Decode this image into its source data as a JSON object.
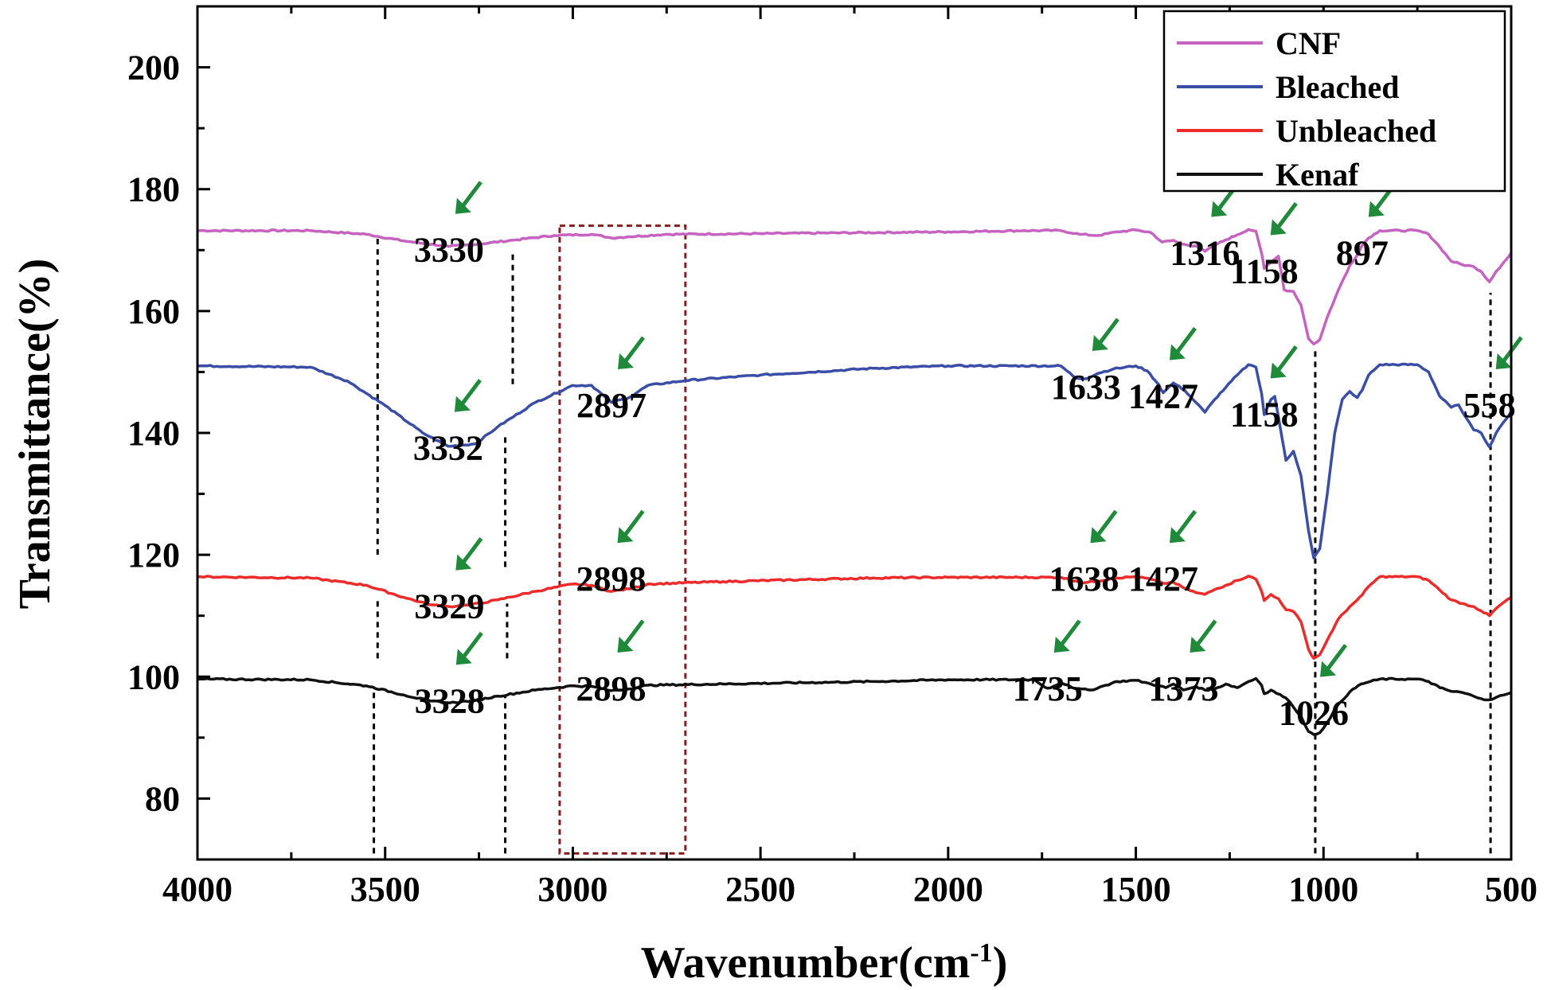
{
  "chart_data": {
    "type": "line",
    "xlabel": "Wavenumber(cm",
    "xlabel_sup": "-1",
    "xlabel_close": ")",
    "ylabel": "Transmittance(%)",
    "xlim": [
      4000,
      500
    ],
    "ylim": [
      70,
      210
    ],
    "x_reversed": true,
    "xticks": [
      4000,
      3500,
      3000,
      2500,
      2000,
      1500,
      1000,
      500
    ],
    "yticks": [
      80,
      100,
      120,
      140,
      160,
      180,
      200
    ],
    "grid": false,
    "legend_position": "top-right",
    "series": [
      {
        "name": "CNF",
        "color": "#c663c1",
        "points": [
          [
            4000,
            173.2
          ],
          [
            3700,
            173.2
          ],
          [
            3550,
            172.6
          ],
          [
            3450,
            171.5
          ],
          [
            3330,
            170.6
          ],
          [
            3250,
            171.0
          ],
          [
            3150,
            171.7
          ],
          [
            3050,
            172.4
          ],
          [
            2950,
            172.6
          ],
          [
            2897,
            172.0
          ],
          [
            2850,
            172.2
          ],
          [
            2750,
            172.6
          ],
          [
            2500,
            172.7
          ],
          [
            2000,
            173.0
          ],
          [
            1800,
            173.2
          ],
          [
            1700,
            173.2
          ],
          [
            1650,
            172.6
          ],
          [
            1600,
            172.4
          ],
          [
            1550,
            173.0
          ],
          [
            1500,
            173.3
          ],
          [
            1460,
            172.9
          ],
          [
            1430,
            171.3
          ],
          [
            1400,
            171.6
          ],
          [
            1380,
            171.0
          ],
          [
            1340,
            170.7
          ],
          [
            1316,
            169.8
          ],
          [
            1290,
            170.8
          ],
          [
            1260,
            171.7
          ],
          [
            1230,
            172.5
          ],
          [
            1200,
            173.4
          ],
          [
            1180,
            173.1
          ],
          [
            1165,
            169.5
          ],
          [
            1158,
            167.0
          ],
          [
            1140,
            168.0
          ],
          [
            1120,
            169.0
          ],
          [
            1105,
            163.5
          ],
          [
            1080,
            163.2
          ],
          [
            1060,
            161.0
          ],
          [
            1040,
            155.5
          ],
          [
            1026,
            154.6
          ],
          [
            1010,
            155.3
          ],
          [
            990,
            159.0
          ],
          [
            960,
            163.5
          ],
          [
            930,
            167.5
          ],
          [
            910,
            169.2
          ],
          [
            897,
            170.8
          ],
          [
            880,
            172.0
          ],
          [
            850,
            173.2
          ],
          [
            750,
            173.2
          ],
          [
            720,
            172.6
          ],
          [
            690,
            170.5
          ],
          [
            660,
            168.2
          ],
          [
            630,
            167.6
          ],
          [
            600,
            167.3
          ],
          [
            580,
            166.5
          ],
          [
            558,
            164.8
          ],
          [
            540,
            166.5
          ],
          [
            520,
            168.0
          ],
          [
            500,
            169.5
          ]
        ]
      },
      {
        "name": "Bleached",
        "color": "#3a4ea8",
        "points": [
          [
            4000,
            151.0
          ],
          [
            3700,
            150.8
          ],
          [
            3600,
            148.5
          ],
          [
            3500,
            144.5
          ],
          [
            3400,
            140.0
          ],
          [
            3332,
            137.8
          ],
          [
            3260,
            138.2
          ],
          [
            3200,
            141.0
          ],
          [
            3100,
            145.0
          ],
          [
            3000,
            147.8
          ],
          [
            2950,
            147.8
          ],
          [
            2920,
            146.2
          ],
          [
            2897,
            145.0
          ],
          [
            2850,
            145.8
          ],
          [
            2800,
            147.8
          ],
          [
            2700,
            148.6
          ],
          [
            2500,
            149.5
          ],
          [
            2200,
            150.6
          ],
          [
            2000,
            151.0
          ],
          [
            1700,
            151.0
          ],
          [
            1660,
            149.0
          ],
          [
            1633,
            148.9
          ],
          [
            1600,
            149.8
          ],
          [
            1560,
            150.5
          ],
          [
            1500,
            151.0
          ],
          [
            1470,
            150.2
          ],
          [
            1440,
            148.0
          ],
          [
            1427,
            146.6
          ],
          [
            1400,
            148.2
          ],
          [
            1370,
            147.0
          ],
          [
            1340,
            145.0
          ],
          [
            1316,
            143.4
          ],
          [
            1290,
            145.5
          ],
          [
            1260,
            147.5
          ],
          [
            1230,
            149.5
          ],
          [
            1200,
            151.2
          ],
          [
            1180,
            150.8
          ],
          [
            1165,
            146.5
          ],
          [
            1158,
            143.0
          ],
          [
            1140,
            145.5
          ],
          [
            1130,
            146.0
          ],
          [
            1110,
            139.0
          ],
          [
            1100,
            135.5
          ],
          [
            1080,
            137.0
          ],
          [
            1060,
            133.0
          ],
          [
            1040,
            124.0
          ],
          [
            1026,
            119.5
          ],
          [
            1010,
            121.0
          ],
          [
            990,
            130.0
          ],
          [
            970,
            140.0
          ],
          [
            950,
            145.5
          ],
          [
            930,
            146.8
          ],
          [
            910,
            145.8
          ],
          [
            897,
            147.0
          ],
          [
            880,
            149.5
          ],
          [
            850,
            151.2
          ],
          [
            750,
            151.2
          ],
          [
            720,
            150.0
          ],
          [
            690,
            146.0
          ],
          [
            660,
            144.2
          ],
          [
            640,
            144.6
          ],
          [
            620,
            142.5
          ],
          [
            600,
            140.5
          ],
          [
            580,
            140.0
          ],
          [
            558,
            137.7
          ],
          [
            540,
            140.0
          ],
          [
            520,
            141.8
          ],
          [
            500,
            143.5
          ]
        ]
      },
      {
        "name": "Unbleached",
        "color": "#ee2b2b",
        "points": [
          [
            4000,
            116.4
          ],
          [
            3700,
            116.2
          ],
          [
            3550,
            115.0
          ],
          [
            3450,
            113.0
          ],
          [
            3380,
            111.8
          ],
          [
            3329,
            111.5
          ],
          [
            3270,
            111.8
          ],
          [
            3200,
            112.6
          ],
          [
            3100,
            114.0
          ],
          [
            3000,
            115.2
          ],
          [
            2950,
            115.0
          ],
          [
            2898,
            114.0
          ],
          [
            2850,
            114.4
          ],
          [
            2800,
            115.2
          ],
          [
            2600,
            115.6
          ],
          [
            2200,
            116.2
          ],
          [
            2000,
            116.3
          ],
          [
            1700,
            116.3
          ],
          [
            1660,
            115.7
          ],
          [
            1638,
            115.4
          ],
          [
            1600,
            115.7
          ],
          [
            1560,
            116.2
          ],
          [
            1500,
            116.4
          ],
          [
            1460,
            116.0
          ],
          [
            1427,
            115.3
          ],
          [
            1400,
            115.5
          ],
          [
            1370,
            114.5
          ],
          [
            1340,
            113.8
          ],
          [
            1316,
            113.5
          ],
          [
            1290,
            114.3
          ],
          [
            1260,
            115.0
          ],
          [
            1230,
            115.8
          ],
          [
            1200,
            116.5
          ],
          [
            1180,
            116.0
          ],
          [
            1165,
            114.0
          ],
          [
            1158,
            112.5
          ],
          [
            1140,
            113.5
          ],
          [
            1120,
            112.8
          ],
          [
            1100,
            111.0
          ],
          [
            1080,
            110.7
          ],
          [
            1060,
            109.0
          ],
          [
            1040,
            104.5
          ],
          [
            1026,
            103.0
          ],
          [
            1010,
            103.6
          ],
          [
            990,
            106.0
          ],
          [
            960,
            109.5
          ],
          [
            930,
            111.5
          ],
          [
            910,
            112.6
          ],
          [
            897,
            113.4
          ],
          [
            880,
            114.8
          ],
          [
            850,
            116.4
          ],
          [
            750,
            116.4
          ],
          [
            720,
            115.8
          ],
          [
            690,
            114.2
          ],
          [
            660,
            112.6
          ],
          [
            630,
            112.0
          ],
          [
            600,
            111.5
          ],
          [
            580,
            110.8
          ],
          [
            558,
            110.0
          ],
          [
            540,
            111.2
          ],
          [
            520,
            112.2
          ],
          [
            500,
            113.0
          ]
        ]
      },
      {
        "name": "Kenaf",
        "color": "#111111",
        "points": [
          [
            4000,
            99.6
          ],
          [
            3700,
            99.5
          ],
          [
            3550,
            98.5
          ],
          [
            3450,
            97.0
          ],
          [
            3380,
            96.0
          ],
          [
            3328,
            95.7
          ],
          [
            3260,
            96.1
          ],
          [
            3200,
            96.8
          ],
          [
            3100,
            97.8
          ],
          [
            3000,
            98.5
          ],
          [
            2950,
            98.4
          ],
          [
            2898,
            97.7
          ],
          [
            2850,
            98.0
          ],
          [
            2800,
            98.6
          ],
          [
            2600,
            98.8
          ],
          [
            2200,
            99.2
          ],
          [
            2000,
            99.5
          ],
          [
            1770,
            99.5
          ],
          [
            1750,
            98.6
          ],
          [
            1735,
            98.1
          ],
          [
            1720,
            98.4
          ],
          [
            1700,
            99.0
          ],
          [
            1680,
            98.6
          ],
          [
            1660,
            98.0
          ],
          [
            1620,
            97.8
          ],
          [
            1580,
            98.6
          ],
          [
            1550,
            99.2
          ],
          [
            1500,
            99.4
          ],
          [
            1460,
            98.8
          ],
          [
            1420,
            98.2
          ],
          [
            1400,
            98.8
          ],
          [
            1373,
            97.8
          ],
          [
            1340,
            98.4
          ],
          [
            1316,
            97.8
          ],
          [
            1290,
            98.0
          ],
          [
            1260,
            98.8
          ],
          [
            1230,
            98.2
          ],
          [
            1200,
            99.2
          ],
          [
            1180,
            99.7
          ],
          [
            1165,
            98.6
          ],
          [
            1158,
            97.2
          ],
          [
            1140,
            97.8
          ],
          [
            1100,
            96.5
          ],
          [
            1080,
            95.0
          ],
          [
            1060,
            93.5
          ],
          [
            1040,
            91.0
          ],
          [
            1026,
            90.5
          ],
          [
            1010,
            90.8
          ],
          [
            990,
            92.5
          ],
          [
            960,
            95.5
          ],
          [
            930,
            97.5
          ],
          [
            900,
            98.8
          ],
          [
            850,
            99.6
          ],
          [
            750,
            99.6
          ],
          [
            720,
            99.2
          ],
          [
            690,
            98.2
          ],
          [
            660,
            97.6
          ],
          [
            630,
            97.4
          ],
          [
            600,
            96.8
          ],
          [
            580,
            96.4
          ],
          [
            558,
            96.2
          ],
          [
            540,
            96.6
          ],
          [
            520,
            97.0
          ],
          [
            500,
            97.4
          ]
        ]
      }
    ],
    "annotations": [
      {
        "text": "3330",
        "x": 3330,
        "y": 165.5
      },
      {
        "text": "1316",
        "x": 1316,
        "y": 165.0
      },
      {
        "text": "1158",
        "x": 1158,
        "y": 162.0
      },
      {
        "text": "897",
        "x": 897,
        "y": 165.0
      },
      {
        "text": "3332",
        "x": 3332,
        "y": 133.0
      },
      {
        "text": "2897",
        "x": 2897,
        "y": 140.0
      },
      {
        "text": "1633",
        "x": 1633,
        "y": 143.0
      },
      {
        "text": "1427",
        "x": 1427,
        "y": 141.5
      },
      {
        "text": "1158",
        "x": 1158,
        "y": 138.5
      },
      {
        "text": "558",
        "x": 558,
        "y": 140.0
      },
      {
        "text": "3329",
        "x": 3329,
        "y": 107.0
      },
      {
        "text": "2898",
        "x": 2898,
        "y": 111.5
      },
      {
        "text": "1638",
        "x": 1638,
        "y": 111.5
      },
      {
        "text": "1427",
        "x": 1427,
        "y": 111.5
      },
      {
        "text": "3328",
        "x": 3328,
        "y": 91.5
      },
      {
        "text": "2898",
        "x": 2898,
        "y": 93.5
      },
      {
        "text": "1735",
        "x": 1735,
        "y": 93.5
      },
      {
        "text": "1373",
        "x": 1373,
        "y": 93.5
      },
      {
        "text": "1026",
        "x": 1026,
        "y": 89.5
      }
    ],
    "reference_lines": [
      {
        "x": 3530,
        "y1": 71,
        "y2": 98
      },
      {
        "x": 3520,
        "y1": 103,
        "y2": 113
      },
      {
        "x": 3520,
        "y1": 120,
        "y2": 172
      },
      {
        "x": 3180,
        "y1": 71,
        "y2": 97
      },
      {
        "x": 3175,
        "y1": 103,
        "y2": 112
      },
      {
        "x": 3180,
        "y1": 118,
        "y2": 140
      },
      {
        "x": 3160,
        "y1": 148,
        "y2": 170
      },
      {
        "x": 1022,
        "y1": 71,
        "y2": 154
      },
      {
        "x": 555,
        "y1": 71,
        "y2": 163
      }
    ],
    "highlight_box": {
      "x1": 3035,
      "x2": 2700,
      "y1": 71,
      "y2": 174
    }
  }
}
